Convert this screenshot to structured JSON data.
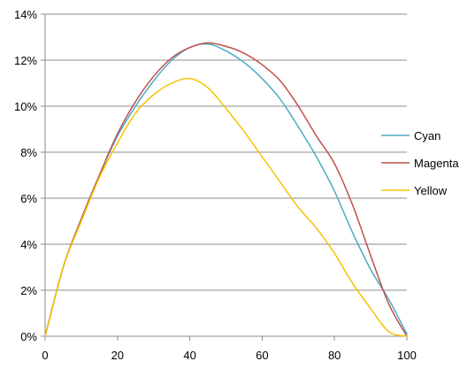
{
  "chart_data": {
    "type": "line",
    "title": "",
    "xlabel": "",
    "ylabel": "",
    "xlim": [
      0,
      100
    ],
    "ylim": [
      0,
      14
    ],
    "x_ticks": [
      0,
      20,
      40,
      60,
      80,
      100
    ],
    "y_ticks": [
      0,
      2,
      4,
      6,
      8,
      10,
      12,
      14
    ],
    "x_tick_labels": [
      "0",
      "20",
      "40",
      "60",
      "80",
      "100"
    ],
    "y_tick_labels": [
      "0%",
      "2%",
      "4%",
      "6%",
      "8%",
      "10%",
      "12%",
      "14%"
    ],
    "grid": "horizontal",
    "legend_position": "right",
    "series": [
      {
        "name": "Cyan",
        "color": "#4bacc6",
        "x": [
          0,
          5,
          10,
          15,
          20,
          25,
          30,
          35,
          40,
          45,
          50,
          55,
          60,
          65,
          70,
          75,
          80,
          85,
          90,
          95,
          100
        ],
        "y": [
          0,
          3.0,
          5.1,
          7.0,
          8.7,
          10.0,
          11.1,
          12.0,
          12.55,
          12.7,
          12.4,
          11.9,
          11.2,
          10.3,
          9.1,
          7.8,
          6.3,
          4.5,
          2.9,
          1.6,
          0.1
        ]
      },
      {
        "name": "Magenta",
        "color": "#c0504d",
        "x": [
          0,
          5,
          10,
          15,
          20,
          25,
          30,
          35,
          40,
          45,
          50,
          55,
          60,
          65,
          70,
          75,
          80,
          85,
          90,
          95,
          100
        ],
        "y": [
          0,
          3.0,
          5.1,
          7.0,
          8.8,
          10.2,
          11.3,
          12.1,
          12.55,
          12.75,
          12.6,
          12.3,
          11.8,
          11.1,
          10.0,
          8.7,
          7.5,
          5.7,
          3.5,
          1.4,
          0.0
        ]
      },
      {
        "name": "Yellow",
        "color": "#f3c400",
        "x": [
          0,
          5,
          10,
          15,
          20,
          25,
          30,
          35,
          40,
          45,
          50,
          55,
          60,
          65,
          70,
          75,
          80,
          85,
          90,
          95,
          100
        ],
        "y": [
          0,
          3.0,
          5.0,
          6.9,
          8.4,
          9.7,
          10.5,
          11.0,
          11.2,
          10.8,
          9.9,
          8.9,
          7.8,
          6.7,
          5.6,
          4.7,
          3.6,
          2.3,
          1.2,
          0.2,
          0.0
        ]
      }
    ]
  }
}
